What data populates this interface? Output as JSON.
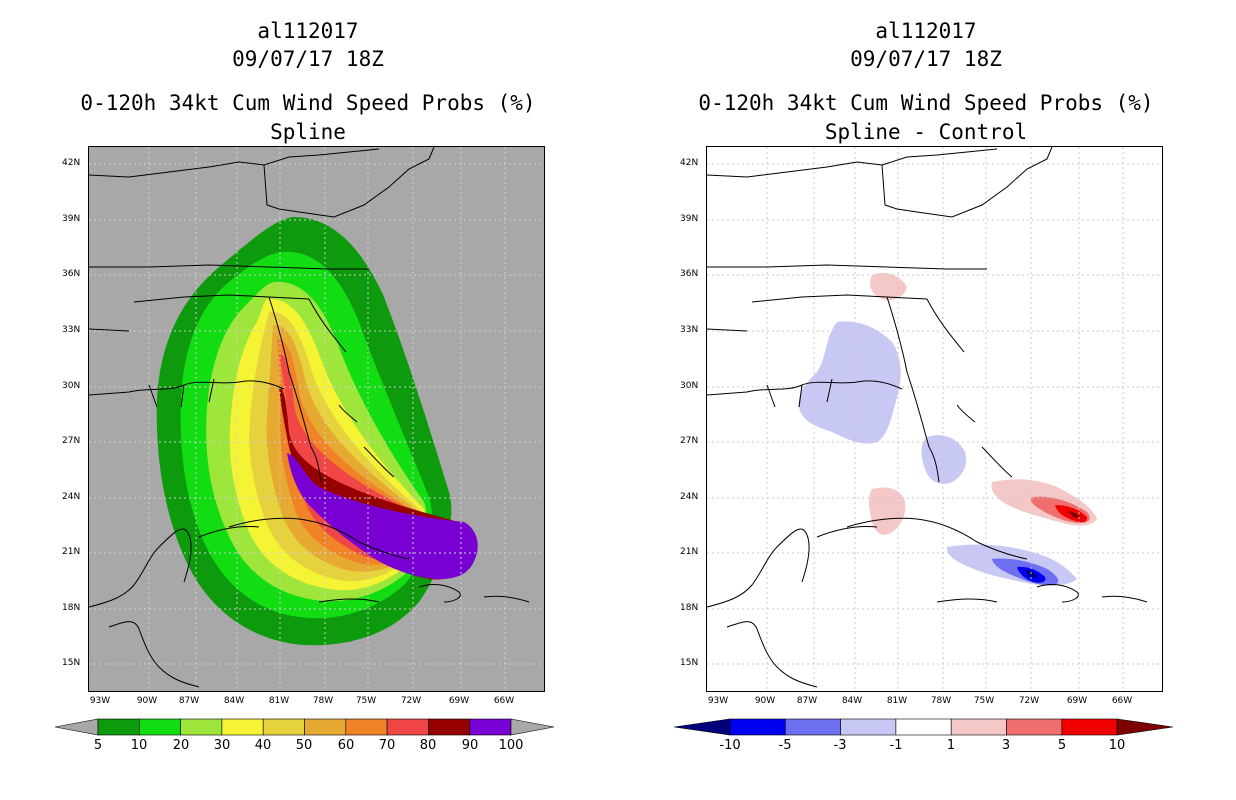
{
  "left": {
    "storm_id": "al112017",
    "datetime": "09/07/17 18Z",
    "title": "0-120h 34kt Cum Wind Speed Probs (%)",
    "subtitle": "Spline",
    "background_color": "#a8a8a8",
    "colorbar": {
      "labels": [
        "5",
        "10",
        "20",
        "30",
        "40",
        "50",
        "60",
        "70",
        "80",
        "90",
        "100"
      ],
      "colors": [
        "#0d9a0d",
        "#12dc12",
        "#9ee63c",
        "#f4f434",
        "#e6d23c",
        "#e6aa32",
        "#f08228",
        "#f04646",
        "#960000",
        "#7800d2"
      ],
      "end_color": "#a8a8a8"
    }
  },
  "right": {
    "storm_id": "al112017",
    "datetime": "09/07/17 18Z",
    "title": "0-120h 34kt Cum Wind Speed Probs (%)",
    "subtitle": "Spline - Control",
    "background_color": "#ffffff",
    "colorbar": {
      "labels": [
        "-10",
        "-5",
        "-3",
        "-1",
        "1",
        "3",
        "5",
        "10"
      ],
      "colors": [
        "#00007d",
        "#0000f0",
        "#6e6ef0",
        "#c8c8f5",
        "#ffffff",
        "#f5c8c8",
        "#f06e6e",
        "#f00000",
        "#7d0000"
      ]
    }
  },
  "lat_labels": [
    "42N",
    "39N",
    "36N",
    "33N",
    "30N",
    "27N",
    "24N",
    "21N",
    "18N",
    "15N"
  ],
  "lon_labels": [
    "93W",
    "90W",
    "87W",
    "84W",
    "81W",
    "78W",
    "75W",
    "72W",
    "69W",
    "66W"
  ]
}
